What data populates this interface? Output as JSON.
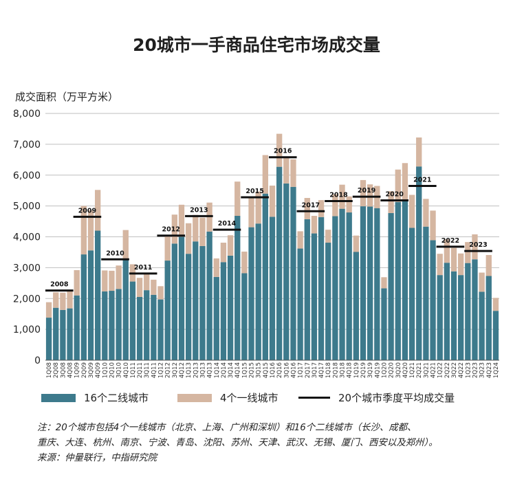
{
  "chart_data": {
    "type": "bar",
    "title": "20城市一手商品住宅市场成交量",
    "ylabel": "成交面积（万平方米）",
    "xlabel": "",
    "ylim": [
      0,
      8000
    ],
    "yticks": [
      "0",
      "1,000",
      "2,000",
      "3,000",
      "4,000",
      "5,000",
      "6,000",
      "7,000",
      "8,000"
    ],
    "categories": [
      "1Q08",
      "2Q08",
      "3Q08",
      "4Q08",
      "1Q09",
      "2Q09",
      "3Q09",
      "4Q09",
      "1Q10",
      "2Q10",
      "3Q10",
      "4Q10",
      "1Q11",
      "2Q11",
      "3Q11",
      "4Q11",
      "1Q12",
      "2Q12",
      "3Q12",
      "4Q12",
      "1Q13",
      "2Q13",
      "3Q13",
      "4Q13",
      "1Q14",
      "2Q14",
      "3Q14",
      "4Q14",
      "1Q15",
      "2Q15",
      "3Q15",
      "4Q15",
      "1Q16",
      "2Q16",
      "3Q16",
      "4Q16",
      "1Q17",
      "2Q17",
      "3Q17",
      "4Q17",
      "1Q18",
      "2Q18",
      "3Q18",
      "4Q18",
      "1Q19",
      "2Q19",
      "3Q19",
      "4Q19",
      "1Q20",
      "2Q20",
      "3Q20",
      "4Q20",
      "1Q21",
      "2Q21",
      "3Q21",
      "4Q21",
      "1Q22",
      "2Q22",
      "3Q22",
      "4Q22",
      "1Q23",
      "2Q23",
      "3Q23",
      "4Q23",
      "1Q24"
    ],
    "series": [
      {
        "name": "16个二线城市",
        "color": "#3d7a8c",
        "values": [
          1380,
          1700,
          1630,
          1680,
          2100,
          3430,
          3560,
          4200,
          2230,
          2250,
          2310,
          3280,
          2550,
          2050,
          2270,
          2120,
          1970,
          3230,
          3780,
          4000,
          3450,
          3850,
          3700,
          4170,
          2700,
          3180,
          3390,
          4680,
          2820,
          4310,
          4430,
          5400,
          4650,
          6270,
          5730,
          5620,
          3620,
          4570,
          4110,
          4640,
          3810,
          4670,
          4910,
          4790,
          3510,
          4990,
          4980,
          4930,
          2330,
          4770,
          5130,
          5200,
          4290,
          6280,
          4330,
          3890,
          2760,
          3160,
          2880,
          2760,
          3150,
          3270,
          2220,
          2730,
          1600
        ]
      },
      {
        "name": "4个一线城市",
        "color": "#d5b6a1",
        "values": [
          500,
          500,
          560,
          570,
          820,
          1570,
          1300,
          1320,
          680,
          650,
          760,
          940,
          560,
          620,
          560,
          490,
          430,
          790,
          940,
          1040,
          990,
          860,
          920,
          940,
          600,
          630,
          660,
          1110,
          700,
          1000,
          1040,
          1250,
          1010,
          1070,
          830,
          890,
          560,
          690,
          570,
          550,
          420,
          710,
          780,
          520,
          530,
          850,
          720,
          720,
          360,
          710,
          1050,
          1190,
          1070,
          940,
          900,
          960,
          690,
          760,
          760,
          700,
          680,
          810,
          620,
          680,
          420
        ]
      },
      {
        "name": "20个城市季度平均成交量",
        "color": "#111111"
      }
    ],
    "averages": [
      {
        "label": "2008",
        "from": "1Q08",
        "to": "4Q08",
        "value": 2260
      },
      {
        "label": "2009",
        "from": "1Q09",
        "to": "4Q09",
        "value": 4650
      },
      {
        "label": "2010",
        "from": "1Q10",
        "to": "4Q10",
        "value": 3270
      },
      {
        "label": "2011",
        "from": "1Q11",
        "to": "4Q11",
        "value": 2810
      },
      {
        "label": "2012",
        "from": "1Q12",
        "to": "4Q12",
        "value": 4040
      },
      {
        "label": "2013",
        "from": "1Q13",
        "to": "4Q13",
        "value": 4670
      },
      {
        "label": "2014",
        "from": "1Q14",
        "to": "4Q14",
        "value": 4230
      },
      {
        "label": "2015",
        "from": "1Q15",
        "to": "4Q15",
        "value": 5280
      },
      {
        "label": "2016",
        "from": "1Q16",
        "to": "4Q16",
        "value": 6580
      },
      {
        "label": "2017",
        "from": "1Q17",
        "to": "4Q17",
        "value": 4830
      },
      {
        "label": "2018",
        "from": "1Q18",
        "to": "4Q18",
        "value": 5160
      },
      {
        "label": "2019",
        "from": "1Q19",
        "to": "4Q19",
        "value": 5300
      },
      {
        "label": "2020",
        "from": "1Q20",
        "to": "4Q20",
        "value": 5180
      },
      {
        "label": "2021",
        "from": "1Q21",
        "to": "4Q21",
        "value": 5650
      },
      {
        "label": "2022",
        "from": "1Q22",
        "to": "4Q22",
        "value": 3680
      },
      {
        "label": "2023",
        "from": "1Q23",
        "to": "4Q23",
        "value": 3540
      }
    ],
    "grid": true,
    "legend_position": "bottom"
  },
  "legend": {
    "tier2": "16个二线城市",
    "tier1": "4个一线城市",
    "average": "20个城市季度平均成交量"
  },
  "notes": {
    "line1": "注：20个城市包括4个一线城市（北京、上海、广州和深圳）和16个二线城市（长沙、成都、",
    "line2": "重庆、大连、杭州、南京、宁波、青岛、沈阳、苏州、天津、武汉、无锡、厦门、西安以及郑州）。",
    "source": "来源：仲量联行，中指研究院"
  },
  "colors": {
    "tier2": "#3d7a8c",
    "tier1": "#d5b6a1",
    "average": "#111111",
    "grid": "#bfbfbf"
  }
}
